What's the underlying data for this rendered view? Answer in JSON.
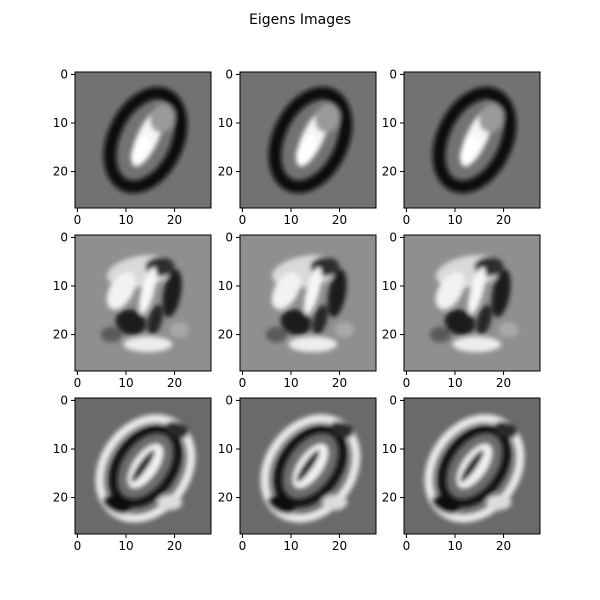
{
  "figure": {
    "title": "Eigens Images"
  },
  "chart_data": {
    "type": "heatmap",
    "title": "Eigens Images",
    "grid": "3x3",
    "colormap": "gray",
    "image_size": [
      28,
      28
    ],
    "x_ticks": [
      "0",
      "10",
      "20"
    ],
    "y_ticks": [
      "0",
      "10",
      "20"
    ],
    "xlim": [
      -0.5,
      27.5
    ],
    "ylim": [
      27.5,
      -0.5
    ],
    "row_backgrounds": [
      "#727272",
      "#8f8f8f",
      "#6a6a6a"
    ],
    "panels": [
      {
        "row": 0,
        "col": 0,
        "pattern": "ring-zero"
      },
      {
        "row": 0,
        "col": 1,
        "pattern": "ring-zero"
      },
      {
        "row": 0,
        "col": 2,
        "pattern": "ring-zero"
      },
      {
        "row": 1,
        "col": 0,
        "pattern": "blob-mixed"
      },
      {
        "row": 1,
        "col": 1,
        "pattern": "blob-mixed"
      },
      {
        "row": 1,
        "col": 2,
        "pattern": "blob-mixed"
      },
      {
        "row": 2,
        "col": 0,
        "pattern": "double-ring"
      },
      {
        "row": 2,
        "col": 1,
        "pattern": "double-ring"
      },
      {
        "row": 2,
        "col": 2,
        "pattern": "double-ring"
      }
    ]
  }
}
